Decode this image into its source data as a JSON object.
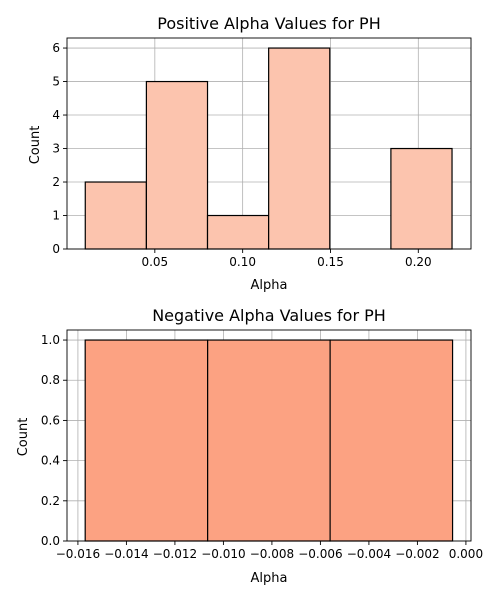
{
  "chart_data": [
    {
      "type": "bar",
      "title": "Positive Alpha Values for PH",
      "xlabel": "Alpha",
      "ylabel": "Count",
      "bin_edges": [
        0.0104,
        0.0452,
        0.08,
        0.1148,
        0.1496,
        0.1844,
        0.2192
      ],
      "values": [
        2,
        5,
        1,
        6,
        0,
        3
      ],
      "xlim": [
        0.0,
        0.23
      ],
      "ylim": [
        0,
        6.3
      ],
      "xticks": [
        0.05,
        0.1,
        0.15,
        0.2
      ],
      "xtick_labels": [
        "0.05",
        "0.10",
        "0.15",
        "0.20"
      ],
      "yticks": [
        0,
        1,
        2,
        3,
        4,
        5,
        6
      ],
      "ytick_labels": [
        "0",
        "1",
        "2",
        "3",
        "4",
        "5",
        "6"
      ],
      "grid": true,
      "bar_color": "#fcc4ae",
      "edge_color": "#000000"
    },
    {
      "type": "bar",
      "title": "Negative Alpha Values for PH",
      "xlabel": "Alpha",
      "ylabel": "Count",
      "bin_edges": [
        -0.0157,
        -0.01065,
        -0.0056,
        -0.00055
      ],
      "values": [
        1,
        1,
        1
      ],
      "xlim": [
        -0.01645,
        0.00021
      ],
      "ylim": [
        0,
        1.05
      ],
      "xticks": [
        -0.016,
        -0.014,
        -0.012,
        -0.01,
        -0.008,
        -0.006,
        -0.004,
        -0.002,
        0.0
      ],
      "xtick_labels": [
        "−0.016",
        "−0.014",
        "−0.012",
        "−0.010",
        "−0.008",
        "−0.006",
        "−0.004",
        "−0.002",
        "0.000"
      ],
      "yticks": [
        0,
        0.2,
        0.4,
        0.6,
        0.8,
        1.0
      ],
      "ytick_labels": [
        "0.0",
        "0.2",
        "0.4",
        "0.6",
        "0.8",
        "1.0"
      ],
      "grid": true,
      "bar_color": "#fca282",
      "edge_color": "#000000"
    }
  ]
}
